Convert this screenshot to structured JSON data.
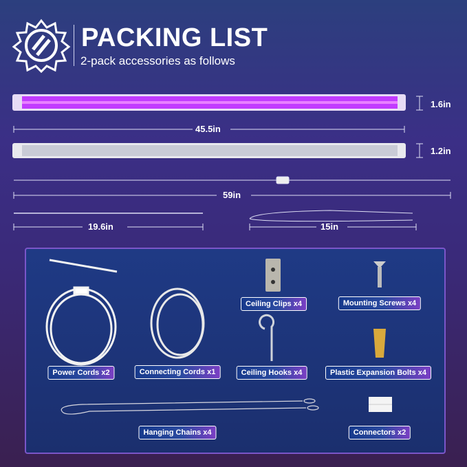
{
  "header": {
    "title": "PACKING LIST",
    "subtitle": "2-pack accessories as follows",
    "logo_icon": "light-bulb-icon"
  },
  "dimensions": {
    "tube_length": "45.5in",
    "tube1_height": "1.6in",
    "tube2_height": "1.2in",
    "power_cord_length": "59in",
    "connecting_cord_length": "19.6in",
    "hanging_chain_length": "15in"
  },
  "items": [
    {
      "label": "Power Cords x2"
    },
    {
      "label": "Connecting Cords x1"
    },
    {
      "label": "Ceiling Clips x4"
    },
    {
      "label": "Mounting Screws x4"
    },
    {
      "label": "Ceiling Hooks x4"
    },
    {
      "label": "Plastic Expansion Bolts x4"
    },
    {
      "label": "Hanging Chains x4"
    },
    {
      "label": "Connectors x2"
    }
  ],
  "colors": {
    "tube_glow": "#c23bff",
    "label_start": "#173a8c",
    "label_end": "#7b3fc4",
    "panel_border": "#7b56c9"
  }
}
